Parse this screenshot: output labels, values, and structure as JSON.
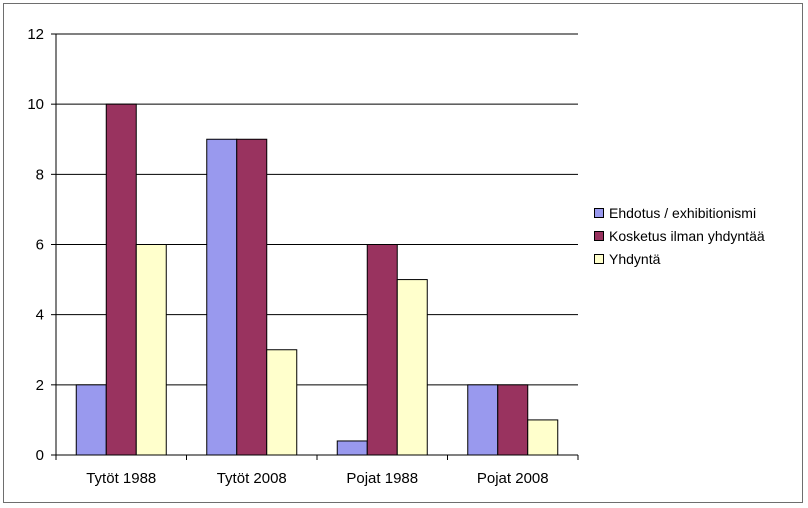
{
  "chart_data": {
    "type": "bar",
    "categories": [
      "Tytöt 1988",
      "Tytöt 2008",
      "Pojat 1988",
      "Pojat 2008"
    ],
    "series": [
      {
        "name": "Ehdotus / exhibitionismi",
        "color": "#9999ee",
        "values": [
          2,
          9,
          0.4,
          2
        ]
      },
      {
        "name": "Kosketus ilman yhdyntää",
        "color": "#99335f",
        "values": [
          10,
          9,
          6,
          2
        ]
      },
      {
        "name": "Yhdyntä",
        "color": "#ffffcc",
        "values": [
          6,
          3,
          5,
          1
        ]
      }
    ],
    "ylim": [
      0,
      12
    ],
    "yticks": [
      0,
      2,
      4,
      6,
      8,
      10,
      12
    ],
    "grid": true,
    "legend": "right"
  }
}
